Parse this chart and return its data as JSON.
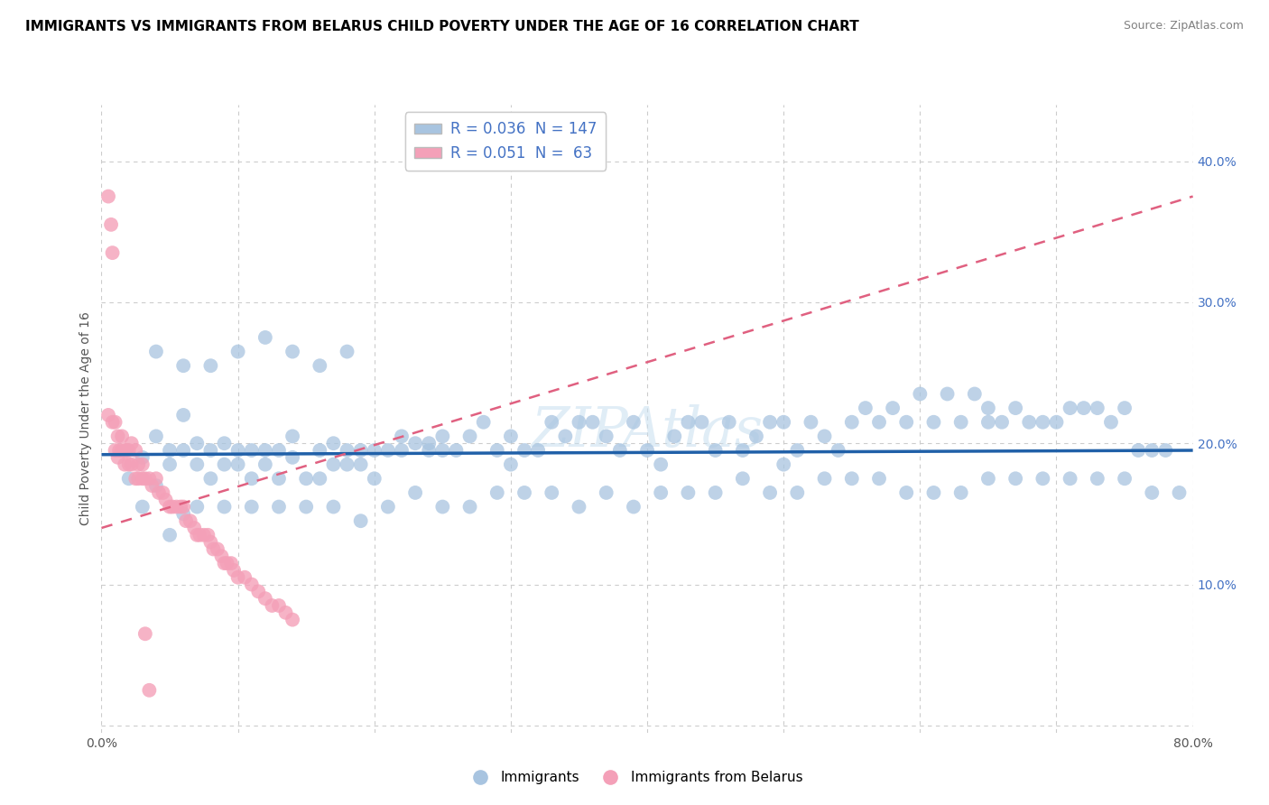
{
  "title": "IMMIGRANTS VS IMMIGRANTS FROM BELARUS CHILD POVERTY UNDER THE AGE OF 16 CORRELATION CHART",
  "source": "Source: ZipAtlas.com",
  "ylabel": "Child Poverty Under the Age of 16",
  "xlabel": "",
  "xlim": [
    0.0,
    0.8
  ],
  "ylim": [
    -0.005,
    0.44
  ],
  "y_ticks_right": [
    0.0,
    0.1,
    0.2,
    0.3,
    0.4
  ],
  "y_tick_labels_right": [
    "",
    "10.0%",
    "20.0%",
    "30.0%",
    "40.0%"
  ],
  "legend_labels": [
    "Immigrants",
    "Immigrants from Belarus"
  ],
  "R_blue": 0.036,
  "N_blue": 147,
  "R_pink": 0.051,
  "N_pink": 63,
  "blue_color": "#a8c4e0",
  "blue_line_color": "#2060a8",
  "pink_color": "#f4a0b8",
  "pink_line_color": "#e06080",
  "grid_color": "#cccccc",
  "title_fontsize": 11,
  "label_fontsize": 10,
  "blue_scatter_x": [
    0.02,
    0.03,
    0.04,
    0.04,
    0.05,
    0.05,
    0.06,
    0.06,
    0.06,
    0.07,
    0.07,
    0.08,
    0.08,
    0.09,
    0.09,
    0.1,
    0.1,
    0.11,
    0.11,
    0.12,
    0.12,
    0.13,
    0.13,
    0.14,
    0.14,
    0.15,
    0.16,
    0.16,
    0.17,
    0.17,
    0.18,
    0.18,
    0.19,
    0.19,
    0.2,
    0.2,
    0.21,
    0.22,
    0.22,
    0.23,
    0.24,
    0.24,
    0.25,
    0.25,
    0.26,
    0.27,
    0.28,
    0.29,
    0.3,
    0.3,
    0.31,
    0.32,
    0.33,
    0.34,
    0.35,
    0.36,
    0.37,
    0.38,
    0.39,
    0.4,
    0.41,
    0.42,
    0.43,
    0.44,
    0.45,
    0.46,
    0.47,
    0.48,
    0.49,
    0.5,
    0.5,
    0.51,
    0.52,
    0.53,
    0.54,
    0.55,
    0.56,
    0.57,
    0.58,
    0.59,
    0.6,
    0.61,
    0.62,
    0.63,
    0.64,
    0.65,
    0.65,
    0.66,
    0.67,
    0.68,
    0.69,
    0.7,
    0.71,
    0.72,
    0.73,
    0.74,
    0.75,
    0.76,
    0.77,
    0.78,
    0.03,
    0.05,
    0.07,
    0.09,
    0.11,
    0.13,
    0.15,
    0.17,
    0.19,
    0.21,
    0.23,
    0.25,
    0.27,
    0.29,
    0.31,
    0.33,
    0.35,
    0.37,
    0.39,
    0.41,
    0.43,
    0.45,
    0.47,
    0.49,
    0.51,
    0.53,
    0.55,
    0.57,
    0.59,
    0.61,
    0.63,
    0.65,
    0.67,
    0.69,
    0.71,
    0.73,
    0.75,
    0.77,
    0.79,
    0.04,
    0.06,
    0.08,
    0.1,
    0.12,
    0.14,
    0.16,
    0.18
  ],
  "blue_scatter_y": [
    0.175,
    0.19,
    0.17,
    0.205,
    0.185,
    0.195,
    0.15,
    0.22,
    0.195,
    0.185,
    0.2,
    0.175,
    0.195,
    0.185,
    0.2,
    0.185,
    0.195,
    0.175,
    0.195,
    0.185,
    0.195,
    0.175,
    0.195,
    0.19,
    0.205,
    0.175,
    0.175,
    0.195,
    0.185,
    0.2,
    0.185,
    0.195,
    0.185,
    0.195,
    0.175,
    0.195,
    0.195,
    0.195,
    0.205,
    0.2,
    0.195,
    0.2,
    0.195,
    0.205,
    0.195,
    0.205,
    0.215,
    0.195,
    0.185,
    0.205,
    0.195,
    0.195,
    0.215,
    0.205,
    0.215,
    0.215,
    0.205,
    0.195,
    0.215,
    0.195,
    0.185,
    0.205,
    0.215,
    0.215,
    0.195,
    0.215,
    0.195,
    0.205,
    0.215,
    0.185,
    0.215,
    0.195,
    0.215,
    0.205,
    0.195,
    0.215,
    0.225,
    0.215,
    0.225,
    0.215,
    0.235,
    0.215,
    0.235,
    0.215,
    0.235,
    0.225,
    0.215,
    0.215,
    0.225,
    0.215,
    0.215,
    0.215,
    0.225,
    0.225,
    0.225,
    0.215,
    0.225,
    0.195,
    0.195,
    0.195,
    0.155,
    0.135,
    0.155,
    0.155,
    0.155,
    0.155,
    0.155,
    0.155,
    0.145,
    0.155,
    0.165,
    0.155,
    0.155,
    0.165,
    0.165,
    0.165,
    0.155,
    0.165,
    0.155,
    0.165,
    0.165,
    0.165,
    0.175,
    0.165,
    0.165,
    0.175,
    0.175,
    0.175,
    0.165,
    0.165,
    0.165,
    0.175,
    0.175,
    0.175,
    0.175,
    0.175,
    0.175,
    0.165,
    0.165,
    0.265,
    0.255,
    0.255,
    0.265,
    0.275,
    0.265,
    0.255,
    0.265
  ],
  "pink_scatter_x": [
    0.005,
    0.007,
    0.008,
    0.01,
    0.012,
    0.013,
    0.015,
    0.017,
    0.018,
    0.02,
    0.022,
    0.025,
    0.027,
    0.03,
    0.032,
    0.035,
    0.037,
    0.04,
    0.042,
    0.045,
    0.047,
    0.05,
    0.052,
    0.055,
    0.058,
    0.06,
    0.062,
    0.065,
    0.068,
    0.07,
    0.072,
    0.075,
    0.078,
    0.08,
    0.082,
    0.085,
    0.088,
    0.09,
    0.092,
    0.095,
    0.097,
    0.1,
    0.105,
    0.11,
    0.115,
    0.12,
    0.125,
    0.13,
    0.135,
    0.14,
    0.005,
    0.008,
    0.01,
    0.012,
    0.015,
    0.018,
    0.02,
    0.022,
    0.025,
    0.027,
    0.03,
    0.032,
    0.035
  ],
  "pink_scatter_y": [
    0.375,
    0.355,
    0.335,
    0.195,
    0.19,
    0.195,
    0.195,
    0.185,
    0.195,
    0.185,
    0.185,
    0.175,
    0.175,
    0.175,
    0.175,
    0.175,
    0.17,
    0.175,
    0.165,
    0.165,
    0.16,
    0.155,
    0.155,
    0.155,
    0.155,
    0.155,
    0.145,
    0.145,
    0.14,
    0.135,
    0.135,
    0.135,
    0.135,
    0.13,
    0.125,
    0.125,
    0.12,
    0.115,
    0.115,
    0.115,
    0.11,
    0.105,
    0.105,
    0.1,
    0.095,
    0.09,
    0.085,
    0.085,
    0.08,
    0.075,
    0.22,
    0.215,
    0.215,
    0.205,
    0.205,
    0.195,
    0.195,
    0.2,
    0.195,
    0.185,
    0.185,
    0.065,
    0.025
  ],
  "blue_trend_x0": 0.0,
  "blue_trend_x1": 0.8,
  "blue_trend_y0": 0.192,
  "blue_trend_y1": 0.195,
  "pink_trend_x0": 0.0,
  "pink_trend_x1": 0.8,
  "pink_trend_y0": 0.14,
  "pink_trend_y1": 0.375
}
